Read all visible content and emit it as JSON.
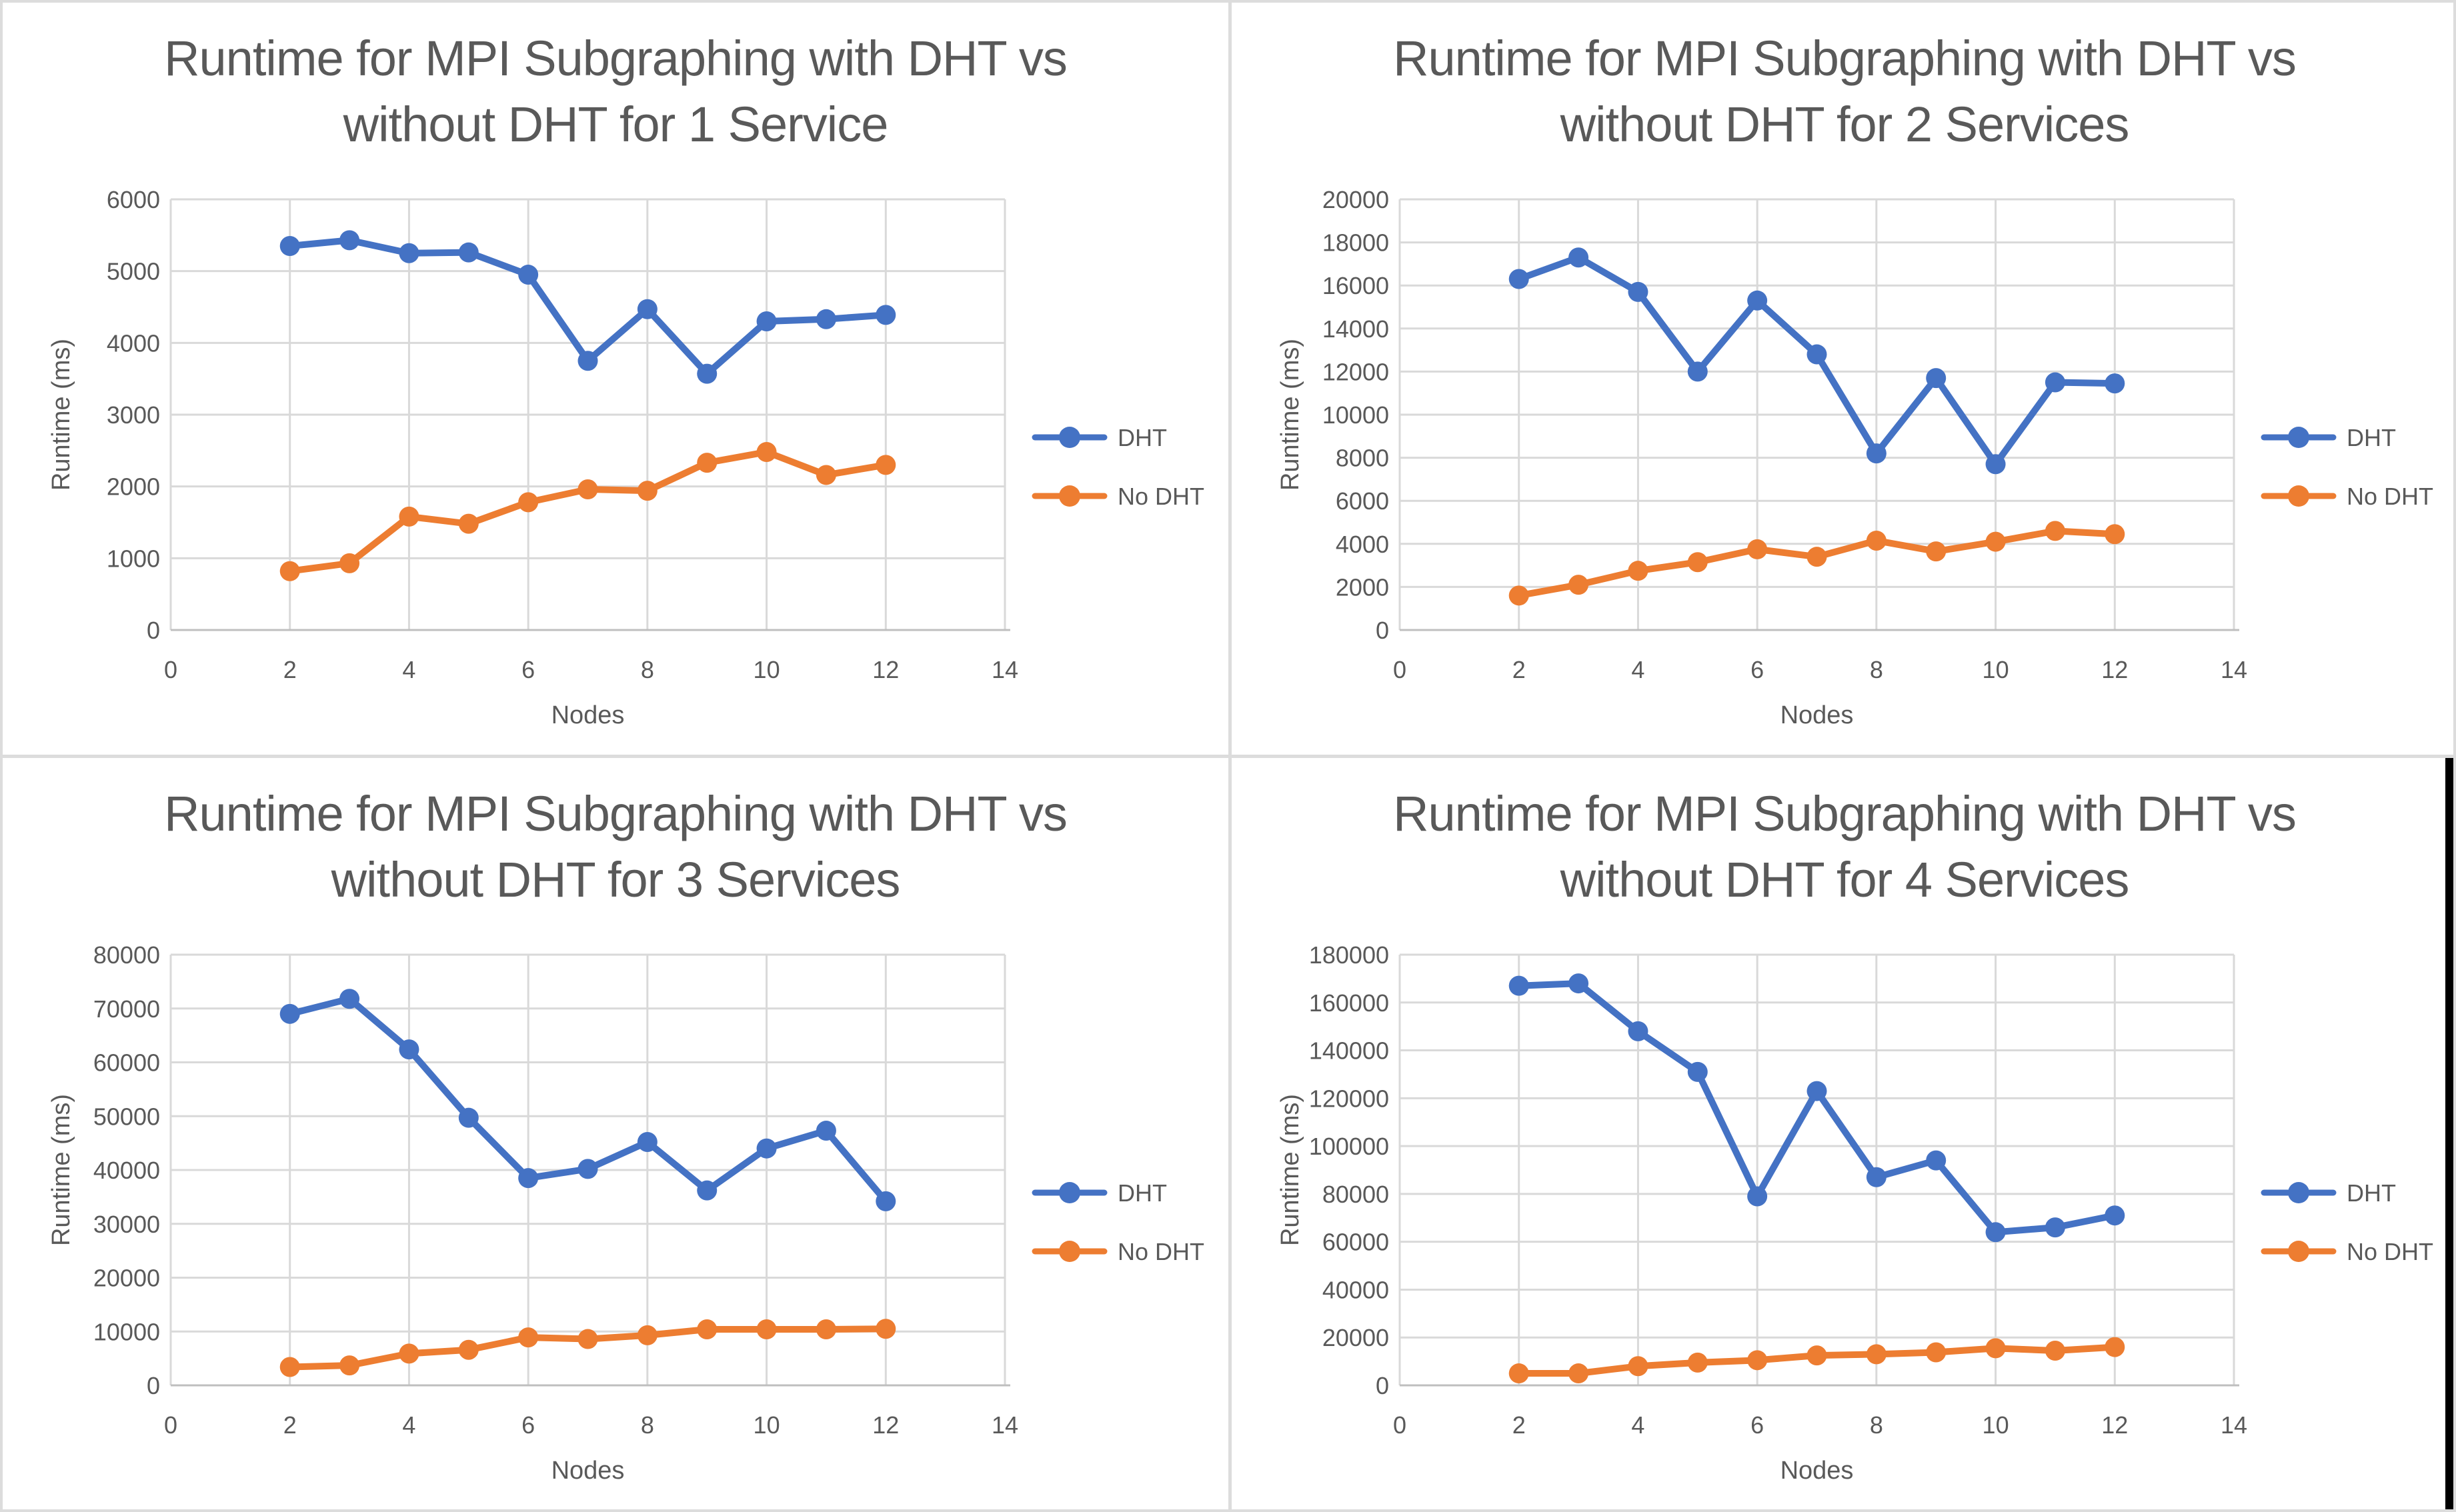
{
  "colors": {
    "dht_series": "#4472C4",
    "no_dht_series": "#ED7D31",
    "gridline": "#D9D9D9",
    "axis_line": "#BFBFBF",
    "text": "#595959",
    "panel_border": "#DCDCDC",
    "screen_edge": "#000000"
  },
  "chart_data": [
    {
      "type": "line",
      "title_lines": [
        "Runtime for MPI Subgraphing with DHT vs",
        "without DHT for 1 Service"
      ],
      "xlabel": "Nodes",
      "ylabel": "Runtime (ms)",
      "xlim": [
        0,
        14
      ],
      "xtick_step": 2,
      "ylim": [
        0,
        6000
      ],
      "ytick_step": 1000,
      "grid": true,
      "legend_position": "right",
      "x": [
        2,
        3,
        4,
        5,
        6,
        7,
        8,
        9,
        10,
        11,
        12
      ],
      "series": [
        {
          "name": "DHT",
          "color": "#4472C4",
          "values": [
            5350,
            5430,
            5250,
            5260,
            4950,
            3750,
            4470,
            3570,
            4300,
            4330,
            4390
          ]
        },
        {
          "name": "No DHT",
          "color": "#ED7D31",
          "values": [
            820,
            930,
            1580,
            1480,
            1780,
            1960,
            1940,
            2330,
            2480,
            2160,
            2300
          ]
        }
      ]
    },
    {
      "type": "line",
      "title_lines": [
        "Runtime for MPI Subgraphing with DHT vs",
        "without DHT for 2 Services"
      ],
      "xlabel": "Nodes",
      "ylabel": "Runtime (ms)",
      "xlim": [
        0,
        14
      ],
      "xtick_step": 2,
      "ylim": [
        0,
        20000
      ],
      "ytick_step": 2000,
      "grid": true,
      "legend_position": "right",
      "x": [
        2,
        3,
        4,
        5,
        6,
        7,
        8,
        9,
        10,
        11,
        12
      ],
      "series": [
        {
          "name": "DHT",
          "color": "#4472C4",
          "values": [
            16300,
            17300,
            15700,
            12000,
            15300,
            12800,
            8200,
            11700,
            7700,
            11500,
            11450
          ]
        },
        {
          "name": "No DHT",
          "color": "#ED7D31",
          "values": [
            1600,
            2100,
            2750,
            3150,
            3750,
            3400,
            4150,
            3650,
            4100,
            4600,
            4450
          ]
        }
      ]
    },
    {
      "type": "line",
      "title_lines": [
        "Runtime for MPI Subgraphing with DHT vs",
        "without DHT for 3 Services"
      ],
      "xlabel": "Nodes",
      "ylabel": "Runtime (ms)",
      "xlim": [
        0,
        14
      ],
      "xtick_step": 2,
      "ylim": [
        0,
        80000
      ],
      "ytick_step": 10000,
      "grid": true,
      "legend_position": "right",
      "x": [
        2,
        3,
        4,
        5,
        6,
        7,
        8,
        9,
        10,
        11,
        12
      ],
      "series": [
        {
          "name": "DHT",
          "color": "#4472C4",
          "values": [
            69000,
            71800,
            62400,
            49700,
            38500,
            40200,
            45200,
            36200,
            44000,
            47300,
            34200
          ]
        },
        {
          "name": "No DHT",
          "color": "#ED7D31",
          "values": [
            3400,
            3700,
            5900,
            6600,
            8900,
            8600,
            9300,
            10400,
            10400,
            10400,
            10500
          ]
        }
      ]
    },
    {
      "type": "line",
      "title_lines": [
        "Runtime for MPI Subgraphing with DHT vs",
        "without DHT for 4 Services"
      ],
      "xlabel": "Nodes",
      "ylabel": "Runtime (ms)",
      "xlim": [
        0,
        14
      ],
      "xtick_step": 2,
      "ylim": [
        0,
        180000
      ],
      "ytick_step": 20000,
      "grid": true,
      "legend_position": "right",
      "x": [
        2,
        3,
        4,
        5,
        6,
        7,
        8,
        9,
        10,
        11,
        12
      ],
      "series": [
        {
          "name": "DHT",
          "color": "#4472C4",
          "values": [
            167000,
            168000,
            148000,
            131000,
            79000,
            123000,
            87000,
            94000,
            64000,
            66000,
            71000
          ]
        },
        {
          "name": "No DHT",
          "color": "#ED7D31",
          "values": [
            5000,
            5000,
            8000,
            9500,
            10500,
            12500,
            13000,
            13800,
            15500,
            14500,
            16000
          ]
        }
      ]
    }
  ]
}
